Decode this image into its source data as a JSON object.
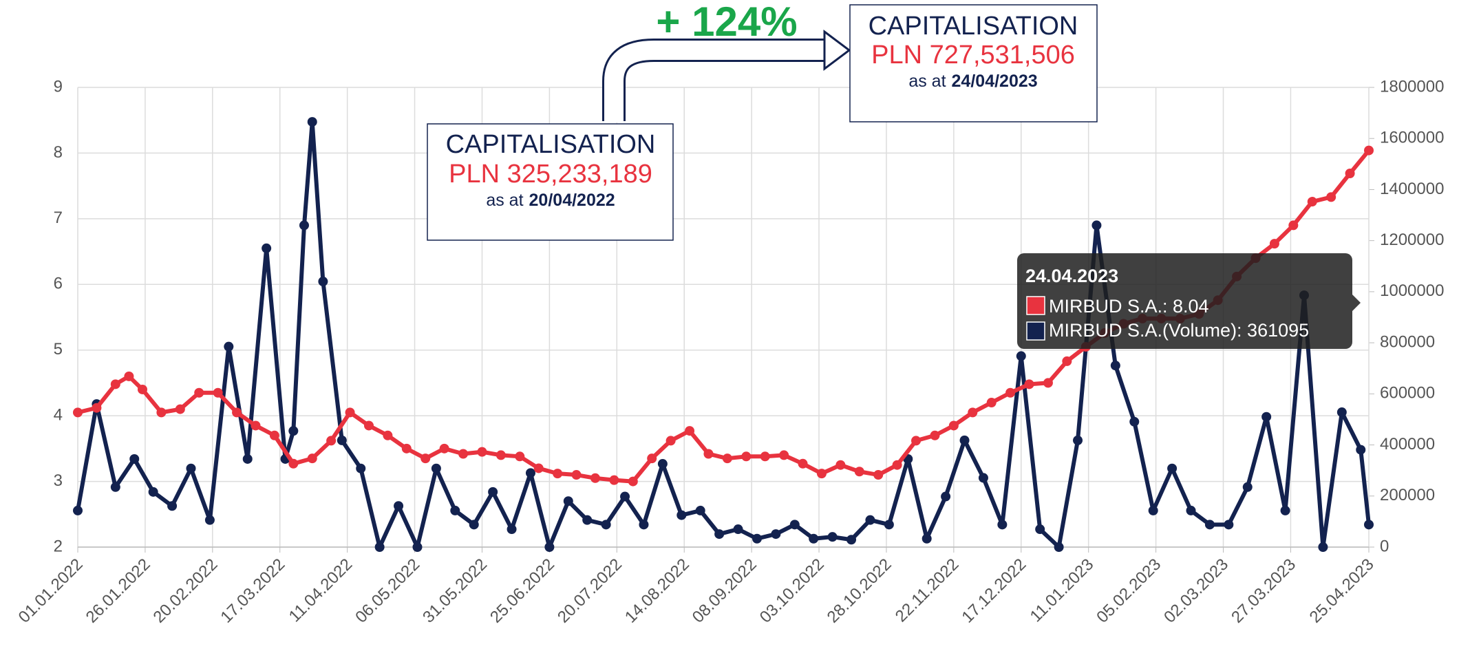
{
  "chart_data": {
    "type": "line",
    "xlim": [
      "01.01.2022",
      "25.04.2023"
    ],
    "xticks": [
      "01.01.2022",
      "26.01.2022",
      "20.02.2022",
      "17.03.2022",
      "11.04.2022",
      "06.05.2022",
      "31.05.2022",
      "25.06.2022",
      "20.07.2022",
      "14.08.2022",
      "08.09.2022",
      "03.10.2022",
      "28.10.2022",
      "22.11.2022",
      "17.12.2022",
      "11.01.2023",
      "05.02.2023",
      "02.03.2023",
      "27.03.2023",
      "25.04.2023"
    ],
    "ylim": [
      2,
      9
    ],
    "yticks": [
      2,
      3,
      4,
      5,
      6,
      7,
      8,
      9
    ],
    "y2lim": [
      0,
      1800000
    ],
    "y2ticks": [
      0,
      200000,
      400000,
      600000,
      800000,
      1000000,
      1200000,
      1400000,
      1600000,
      1800000
    ],
    "grid": true,
    "series": [
      {
        "color": "#e8333f",
        "x": [
          "01.01.2022",
          "08.01.2022",
          "15.01.2022",
          "20.01.2022",
          "25.01.2022",
          "01.02.2022",
          "08.02.2022",
          "15.02.2022",
          "22.02.2022",
          "01.03.2022",
          "08.03.2022",
          "15.03.2022",
          "22.03.2022",
          "29.03.2022",
          "05.04.2022",
          "12.04.2022",
          "19.04.2022",
          "26.04.2022",
          "03.05.2022",
          "10.05.2022",
          "17.05.2022",
          "24.05.2022",
          "31.05.2022",
          "07.06.2022",
          "14.06.2022",
          "21.06.2022",
          "28.06.2022",
          "05.07.2022",
          "12.07.2022",
          "19.07.2022",
          "26.07.2022",
          "02.08.2022",
          "09.08.2022",
          "16.08.2022",
          "23.08.2022",
          "30.08.2022",
          "06.09.2022",
          "13.09.2022",
          "20.09.2022",
          "27.09.2022",
          "04.10.2022",
          "11.10.2022",
          "18.10.2022",
          "25.10.2022",
          "01.11.2022",
          "08.11.2022",
          "15.11.2022",
          "22.11.2022",
          "29.11.2022",
          "06.12.2022",
          "13.12.2022",
          "20.12.2022",
          "27.12.2022",
          "03.01.2023",
          "10.01.2023",
          "17.01.2023",
          "24.01.2023",
          "31.01.2023",
          "07.02.2023",
          "14.02.2023",
          "21.02.2023",
          "28.02.2023",
          "07.03.2023",
          "14.03.2023",
          "21.03.2023",
          "28.03.2023",
          "04.04.2023",
          "11.04.2023",
          "18.04.2023",
          "25.04.2023"
        ],
        "values": [
          4.05,
          4.12,
          4.48,
          4.6,
          4.4,
          4.05,
          4.1,
          4.35,
          4.35,
          4.05,
          3.85,
          3.7,
          3.27,
          3.35,
          3.62,
          4.05,
          3.85,
          3.7,
          3.5,
          3.35,
          3.5,
          3.42,
          3.45,
          3.4,
          3.38,
          3.2,
          3.12,
          3.1,
          3.05,
          3.02,
          3.0,
          3.35,
          3.62,
          3.77,
          3.42,
          3.35,
          3.38,
          3.38,
          3.4,
          3.27,
          3.12,
          3.25,
          3.15,
          3.1,
          3.25,
          3.62,
          3.7,
          3.85,
          4.05,
          4.2,
          4.35,
          4.48,
          4.5,
          4.83,
          5.05,
          5.26,
          5.4,
          5.48,
          5.48,
          5.48,
          5.55,
          5.76,
          6.12,
          6.4,
          6.62,
          6.9,
          7.26,
          7.33,
          7.69,
          8.04
        ]
      },
      {
        "color": "#13224f",
        "axis": "y2",
        "x": [
          "01.01.2022",
          "08.01.2022",
          "15.01.2022",
          "22.01.2022",
          "29.01.2022",
          "05.02.2022",
          "12.02.2022",
          "19.02.2022",
          "26.02.2022",
          "05.03.2022",
          "12.03.2022",
          "19.03.2022",
          "22.03.2022",
          "26.03.2022",
          "29.03.2022",
          "02.04.2022",
          "09.04.2022",
          "16.04.2022",
          "23.04.2022",
          "30.04.2022",
          "07.05.2022",
          "14.05.2022",
          "21.05.2022",
          "28.05.2022",
          "04.06.2022",
          "11.06.2022",
          "18.06.2022",
          "25.06.2022",
          "02.07.2022",
          "09.07.2022",
          "16.07.2022",
          "23.07.2022",
          "30.07.2022",
          "06.08.2022",
          "13.08.2022",
          "20.08.2022",
          "27.08.2022",
          "03.09.2022",
          "10.09.2022",
          "17.09.2022",
          "24.09.2022",
          "01.10.2022",
          "08.10.2022",
          "15.10.2022",
          "22.10.2022",
          "29.10.2022",
          "05.11.2022",
          "12.11.2022",
          "19.11.2022",
          "26.11.2022",
          "03.12.2022",
          "10.12.2022",
          "17.12.2022",
          "24.12.2022",
          "31.12.2022",
          "07.01.2023",
          "14.01.2023",
          "21.01.2023",
          "28.01.2023",
          "04.02.2023",
          "11.02.2023",
          "18.02.2023",
          "25.02.2023",
          "04.03.2023",
          "11.03.2023",
          "18.03.2023",
          "25.03.2023",
          "01.04.2023",
          "08.04.2023",
          "15.04.2023",
          "22.04.2023",
          "25.04.2023"
        ],
        "values": [
          143000,
          560000,
          235000,
          345000,
          216000,
          161000,
          308000,
          106000,
          785000,
          345000,
          1170000,
          345000,
          455000,
          1260000,
          1665000,
          1040000,
          418000,
          308000,
          0,
          161000,
          0,
          308000,
          143000,
          88000,
          216000,
          70000,
          290000,
          0,
          180000,
          106000,
          88000,
          198000,
          88000,
          326000,
          125000,
          143000,
          51000,
          70000,
          33000,
          51000,
          88000,
          33000,
          40000,
          29000,
          106000,
          88000,
          345000,
          33000,
          198000,
          418000,
          271000,
          88000,
          748000,
          70000,
          0,
          418000,
          1260000,
          711000,
          491000,
          143000,
          308000,
          143000,
          88000,
          88000,
          235000,
          510000,
          143000,
          986000,
          0,
          528000,
          381000,
          88000
        ]
      }
    ],
    "annotations": {
      "change": "+ 124%",
      "start": {
        "title": "CAPITALISATION",
        "amount": "PLN 325,233,189",
        "as_at": "as at",
        "date": "20/04/2022"
      },
      "end": {
        "title": "CAPITALISATION",
        "amount": "PLN 727,531,506",
        "as_at": "as at",
        "date": "24/04/2023"
      }
    },
    "tooltip": {
      "title": "24.04.2023",
      "items": [
        "MIRBUD S.A.: 8.04",
        "MIRBUD S.A.(Volume): 361095"
      ]
    }
  }
}
